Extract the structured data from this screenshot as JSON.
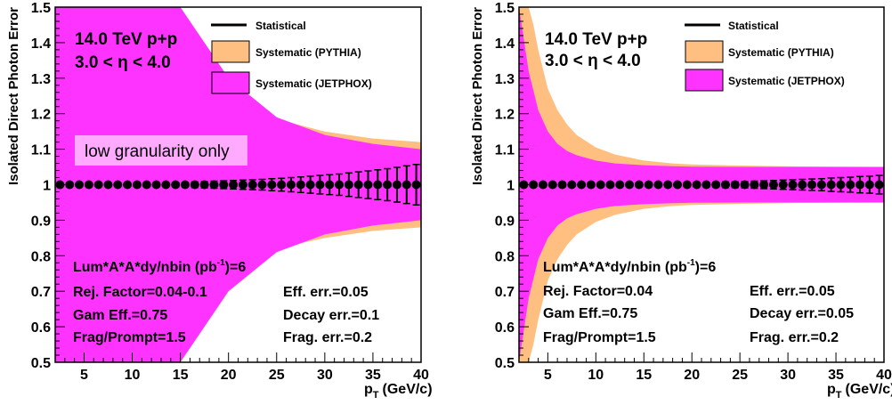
{
  "colors": {
    "jetphox": "#ff33ff",
    "pythia": "#ffbf80",
    "statistical": "#000000",
    "box_fill": "#ffaaff"
  },
  "chart_data": [
    {
      "type": "line",
      "ylabel": "Isolated Direct Photon Error",
      "xlabel": "p_T (GeV/c)",
      "xlabel_main": "p",
      "xlabel_sub": "T",
      "xlabel_unit": "(GeV/c)",
      "xlim": [
        2,
        40
      ],
      "ylim": [
        0.5,
        1.5
      ],
      "x_ticks": [
        5,
        10,
        15,
        20,
        25,
        30,
        35,
        40
      ],
      "y_ticks": [
        0.5,
        0.6,
        0.7,
        0.8,
        0.9,
        1,
        1.1,
        1.2,
        1.3,
        1.4,
        1.5
      ],
      "title_lines": [
        "14.0 TeV p+p",
        "3.0 < η < 4.0"
      ],
      "legend": [
        "Statistical",
        "Systematic (PYTHIA)",
        "Systematic (JETPHOX)"
      ],
      "annotation_box": "low granularity only",
      "info_lines": {
        "lumi": "Lum*A*A*dy/nbin (pb",
        "lumi_sup": "-1",
        "lumi_end": ")=6",
        "rej": "Rej. Factor=0.04-0.1",
        "gam": "Gam Eff.=0.75",
        "frag": "Frag/Prompt=1.5",
        "eff_err": "Eff. err.=0.05",
        "decay_err": "Decay err.=0.1",
        "frag_err": "Frag. err.=0.2"
      },
      "series": [
        {
          "name": "Systematic (PYTHIA)",
          "x": [
            2,
            5,
            10,
            11,
            12,
            13,
            15,
            17,
            20,
            25,
            30,
            35,
            40
          ],
          "upper": [
            1.5,
            1.5,
            1.5,
            1.5,
            1.5,
            1.45,
            1.37,
            1.31,
            1.25,
            1.185,
            1.15,
            1.13,
            1.12
          ],
          "lower": [
            0.5,
            0.5,
            0.5,
            0.5,
            0.5,
            0.55,
            0.64,
            0.7,
            0.76,
            0.82,
            0.85,
            0.87,
            0.88
          ]
        },
        {
          "name": "Systematic (JETPHOX)",
          "x": [
            2,
            5,
            10,
            15,
            20,
            25,
            30,
            35,
            40
          ],
          "upper": [
            1.5,
            1.5,
            1.5,
            1.5,
            1.3,
            1.19,
            1.14,
            1.115,
            1.1
          ],
          "lower": [
            0.5,
            0.5,
            0.5,
            0.5,
            0.7,
            0.81,
            0.86,
            0.885,
            0.9
          ]
        },
        {
          "name": "Statistical",
          "x": [
            2.5,
            3.5,
            4.5,
            5.5,
            6.5,
            7.5,
            8.5,
            9.5,
            10.5,
            11.5,
            12.5,
            13.5,
            14.5,
            15.5,
            16.5,
            17.5,
            18.5,
            19.5,
            20.5,
            21.5,
            22.5,
            23.5,
            24.5,
            25.5,
            26.5,
            27.5,
            28.5,
            29.5,
            30.5,
            31.5,
            32.5,
            33.5,
            34.5,
            35.5,
            36.5,
            37.5,
            38.5,
            39.5
          ],
          "y": [
            1,
            1,
            1,
            1,
            1,
            1,
            1,
            1,
            1,
            1,
            1,
            1,
            1,
            1,
            1,
            1,
            1,
            1,
            1,
            1,
            1,
            1,
            1,
            1,
            1,
            1,
            1,
            1,
            1,
            1,
            1,
            1,
            1,
            1,
            1,
            1,
            1,
            1
          ],
          "err": [
            0.002,
            0.002,
            0.002,
            0.002,
            0.002,
            0.003,
            0.003,
            0.003,
            0.003,
            0.004,
            0.004,
            0.005,
            0.006,
            0.007,
            0.008,
            0.009,
            0.01,
            0.011,
            0.012,
            0.013,
            0.014,
            0.015,
            0.017,
            0.018,
            0.02,
            0.022,
            0.024,
            0.026,
            0.028,
            0.03,
            0.033,
            0.036,
            0.039,
            0.042,
            0.045,
            0.049,
            0.053,
            0.057
          ]
        }
      ]
    },
    {
      "type": "line",
      "ylabel": "Isolated Direct Photon Error",
      "xlabel": "p_T (GeV/c)",
      "xlabel_main": "p",
      "xlabel_sub": "T",
      "xlabel_unit": "(GeV/c)",
      "xlim": [
        2,
        40
      ],
      "ylim": [
        0.5,
        1.5
      ],
      "x_ticks": [
        5,
        10,
        15,
        20,
        25,
        30,
        35,
        40
      ],
      "y_ticks": [
        0.5,
        0.6,
        0.7,
        0.8,
        0.9,
        1,
        1.1,
        1.2,
        1.3,
        1.4,
        1.5
      ],
      "title_lines": [
        "14.0 TeV p+p",
        "3.0 < η < 4.0"
      ],
      "legend": [
        "Statistical",
        "Systematic (PYTHIA)",
        "Systematic (JETPHOX)"
      ],
      "info_lines": {
        "lumi": "Lum*A*A*dy/nbin (pb",
        "lumi_sup": "-1",
        "lumi_end": ")=6",
        "rej": "Rej. Factor=0.04",
        "gam": "Gam Eff.=0.75",
        "frag": "Frag/Prompt=1.5",
        "eff_err": "Eff. err.=0.05",
        "decay_err": "Decay err.=0.05",
        "frag_err": "Frag. err.=0.2"
      },
      "series": [
        {
          "name": "Systematic (PYTHIA)",
          "x": [
            2,
            3,
            3.5,
            4,
            5,
            6,
            7,
            8,
            10,
            12,
            15,
            18,
            20,
            25,
            30,
            35,
            40
          ],
          "upper": [
            1.5,
            1.5,
            1.45,
            1.38,
            1.27,
            1.21,
            1.17,
            1.14,
            1.105,
            1.085,
            1.068,
            1.06,
            1.057,
            1.054,
            1.052,
            1.051,
            1.05
          ],
          "lower": [
            0.5,
            0.5,
            0.55,
            0.62,
            0.73,
            0.79,
            0.83,
            0.86,
            0.895,
            0.915,
            0.932,
            0.94,
            0.943,
            0.946,
            0.948,
            0.949,
            0.95
          ]
        },
        {
          "name": "Systematic (JETPHOX)",
          "x": [
            2,
            3,
            4,
            5,
            6,
            7,
            8,
            10,
            12,
            15,
            18,
            20,
            25,
            30,
            35,
            40
          ],
          "upper": [
            1.5,
            1.32,
            1.21,
            1.15,
            1.115,
            1.095,
            1.083,
            1.068,
            1.06,
            1.055,
            1.052,
            1.051,
            1.05,
            1.05,
            1.05,
            1.05
          ],
          "lower": [
            0.5,
            0.68,
            0.79,
            0.85,
            0.885,
            0.905,
            0.917,
            0.932,
            0.94,
            0.945,
            0.948,
            0.949,
            0.95,
            0.95,
            0.95,
            0.95
          ]
        },
        {
          "name": "Statistical",
          "x": [
            2.5,
            3.5,
            4.5,
            5.5,
            6.5,
            7.5,
            8.5,
            9.5,
            10.5,
            11.5,
            12.5,
            13.5,
            14.5,
            15.5,
            16.5,
            17.5,
            18.5,
            19.5,
            20.5,
            21.5,
            22.5,
            23.5,
            24.5,
            25.5,
            26.5,
            27.5,
            28.5,
            29.5,
            30.5,
            31.5,
            32.5,
            33.5,
            34.5,
            35.5,
            36.5,
            37.5,
            38.5,
            39.5
          ],
          "y": [
            1,
            1,
            1,
            1,
            1,
            1,
            1,
            1,
            1,
            1,
            1,
            1,
            1,
            1,
            1,
            1,
            1,
            1,
            1,
            1,
            1,
            1,
            1,
            1,
            1,
            1,
            1,
            1,
            1,
            1,
            1,
            1,
            1,
            1,
            1,
            1,
            1,
            1
          ],
          "err": [
            0.001,
            0.001,
            0.001,
            0.001,
            0.001,
            0.001,
            0.001,
            0.002,
            0.002,
            0.002,
            0.002,
            0.003,
            0.003,
            0.003,
            0.004,
            0.004,
            0.005,
            0.005,
            0.006,
            0.006,
            0.007,
            0.008,
            0.008,
            0.009,
            0.01,
            0.011,
            0.012,
            0.013,
            0.014,
            0.015,
            0.016,
            0.017,
            0.019,
            0.02,
            0.021,
            0.023,
            0.024,
            0.026
          ]
        }
      ]
    }
  ]
}
